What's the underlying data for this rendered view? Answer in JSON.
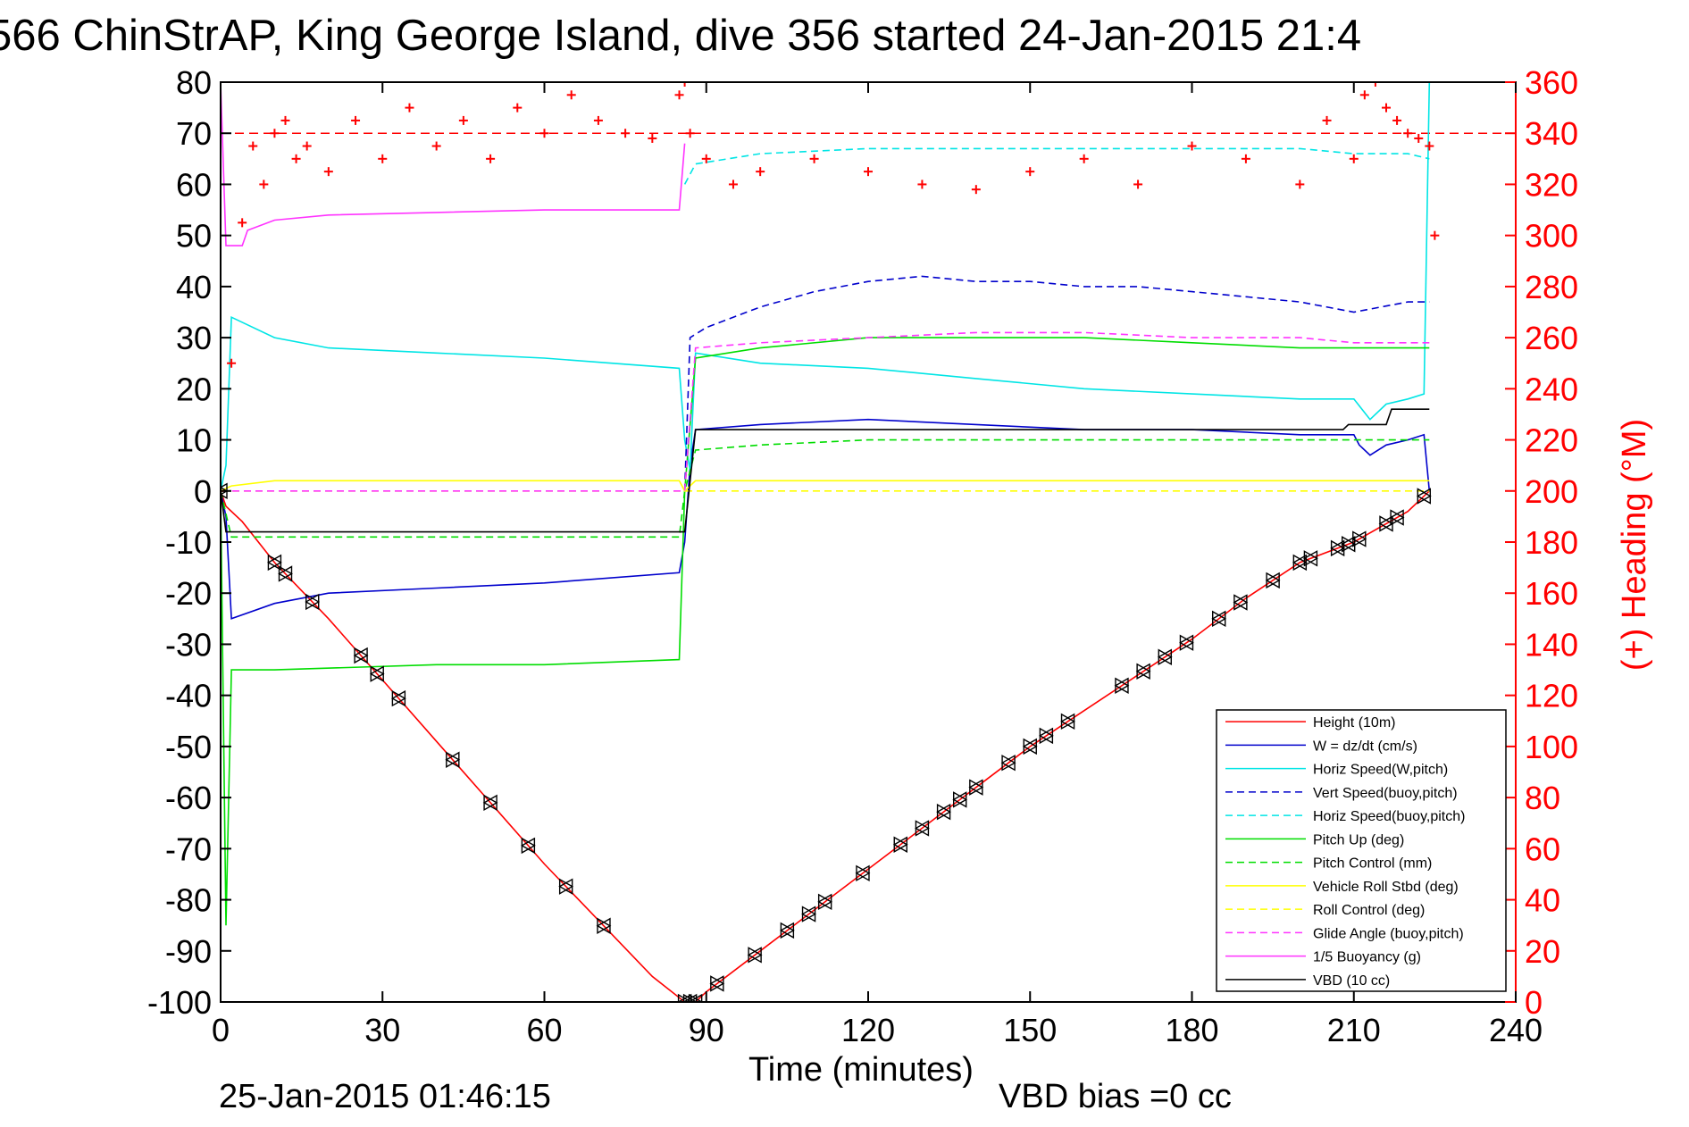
{
  "chart_data": {
    "type": "line",
    "title": "566 ChinStrAP, King George Island, dive 356 started 24-Jan-2015 21:4",
    "xlabel": "Time (minutes)",
    "ylabel_right": "(+) Heading (°M)",
    "footer_left": "25-Jan-2015 01:46:15",
    "footer_right": "VBD bias =0 cc",
    "xlim": [
      0,
      240
    ],
    "ylim_left": [
      -100,
      80
    ],
    "ylim_right": [
      0,
      360
    ],
    "x_ticks": [
      "0",
      "30",
      "60",
      "90",
      "120",
      "150",
      "180",
      "210",
      "240"
    ],
    "y_ticks_left": [
      "80",
      "70",
      "60",
      "50",
      "40",
      "30",
      "20",
      "10",
      "0",
      "-10",
      "-20",
      "-30",
      "-40",
      "-50",
      "-60",
      "-70",
      "-80",
      "-90",
      "-100"
    ],
    "y_ticks_right": [
      "360",
      "340",
      "320",
      "300",
      "280",
      "260",
      "240",
      "220",
      "200",
      "180",
      "160",
      "140",
      "120",
      "100",
      "80",
      "60",
      "40",
      "20",
      "0"
    ],
    "grid": false,
    "legend_position": "bottom-right",
    "colors": {
      "red": "#ff0000",
      "blue": "#0000cc",
      "cyan": "#00e5e5",
      "green": "#00dd00",
      "yellow": "#ffff00",
      "magenta": "#ff33ff",
      "black": "#000000"
    },
    "legend": [
      {
        "label": "Height (10m)",
        "color": "#ff0000",
        "dash": false
      },
      {
        "label": "W = dz/dt (cm/s)",
        "color": "#0000cc",
        "dash": false
      },
      {
        "label": "Horiz Speed(W,pitch)",
        "color": "#00e5e5",
        "dash": false
      },
      {
        "label": "Vert Speed(buoy,pitch)",
        "color": "#0000cc",
        "dash": true
      },
      {
        "label": "Horiz Speed(buoy,pitch)",
        "color": "#00e5e5",
        "dash": true
      },
      {
        "label": "Pitch Up (deg)",
        "color": "#00dd00",
        "dash": false
      },
      {
        "label": "Pitch Control (mm)",
        "color": "#00dd00",
        "dash": true
      },
      {
        "label": "Vehicle Roll Stbd (deg)",
        "color": "#ffff00",
        "dash": false
      },
      {
        "label": "Roll Control (deg)",
        "color": "#ffff00",
        "dash": true
      },
      {
        "label": "Glide Angle (buoy,pitch)",
        "color": "#ff33ff",
        "dash": true
      },
      {
        "label": "1/5 Buoyancy (g)",
        "color": "#ff33ff",
        "dash": false
      },
      {
        "label": "VBD (10 cc)",
        "color": "#000000",
        "dash": false
      }
    ],
    "series": [
      {
        "name": "Height (10m)",
        "axis": "left",
        "x": [
          0,
          1,
          4,
          10,
          20,
          30,
          40,
          50,
          60,
          70,
          80,
          86,
          88,
          90,
          100,
          110,
          120,
          130,
          140,
          150,
          160,
          170,
          180,
          190,
          200,
          210,
          220,
          224
        ],
        "y": [
          0,
          -3,
          -6,
          -14,
          -25,
          -37,
          -49,
          -61,
          -73,
          -84,
          -95,
          -100,
          -100,
          -98,
          -90,
          -82,
          -74,
          -66,
          -58,
          -50,
          -43,
          -36,
          -29,
          -21,
          -14,
          -10,
          -4,
          0
        ]
      },
      {
        "name": "W = dz/dt (cm/s)",
        "axis": "left",
        "x": [
          0,
          1,
          2,
          10,
          20,
          40,
          60,
          85,
          86,
          87,
          88,
          100,
          120,
          140,
          160,
          180,
          200,
          210,
          211,
          213,
          216,
          220,
          223,
          224
        ],
        "y": [
          0,
          -5,
          -25,
          -22,
          -20,
          -19,
          -18,
          -16,
          -10,
          5,
          12,
          13,
          14,
          13,
          12,
          12,
          11,
          11,
          9,
          7,
          9,
          10,
          11,
          0
        ]
      },
      {
        "name": "Horiz Speed(W,pitch)",
        "axis": "left",
        "x": [
          0,
          1,
          2,
          10,
          20,
          40,
          60,
          85,
          86,
          87,
          88,
          100,
          120,
          140,
          160,
          180,
          200,
          210,
          213,
          216,
          220,
          223,
          224
        ],
        "y": [
          0,
          5,
          34,
          30,
          28,
          27,
          26,
          24,
          10,
          4,
          27,
          25,
          24,
          22,
          20,
          19,
          18,
          18,
          14,
          17,
          18,
          19,
          80
        ]
      },
      {
        "name": "Vert Speed(buoy,pitch)",
        "axis": "left",
        "x": [
          86,
          87,
          90,
          100,
          110,
          120,
          130,
          140,
          150,
          160,
          170,
          180,
          190,
          200,
          210,
          220,
          224
        ],
        "y": [
          0,
          30,
          32,
          36,
          39,
          41,
          42,
          41,
          41,
          40,
          40,
          39,
          38,
          37,
          35,
          37,
          37
        ]
      },
      {
        "name": "Horiz Speed(buoy,pitch)",
        "axis": "left",
        "x": [
          86,
          88,
          100,
          120,
          140,
          160,
          180,
          200,
          210,
          220,
          224
        ],
        "y": [
          60,
          64,
          66,
          67,
          67,
          67,
          67,
          67,
          66,
          66,
          65
        ]
      },
      {
        "name": "Pitch Up (deg)",
        "axis": "left",
        "x": [
          0,
          1,
          2,
          10,
          40,
          60,
          85,
          86,
          88,
          100,
          120,
          140,
          160,
          180,
          200,
          210,
          220,
          224
        ],
        "y": [
          0,
          -85,
          -35,
          -35,
          -34,
          -34,
          -33,
          0,
          26,
          28,
          30,
          30,
          30,
          29,
          28,
          28,
          28,
          28
        ]
      },
      {
        "name": "Pitch Control (mm)",
        "axis": "left",
        "x": [
          0,
          2,
          20,
          40,
          60,
          85,
          86,
          88,
          100,
          120,
          140,
          160,
          180,
          200,
          224
        ],
        "y": [
          0,
          -9,
          -9,
          -9,
          -9,
          -9,
          0,
          8,
          9,
          10,
          10,
          10,
          10,
          10,
          10
        ]
      },
      {
        "name": "Vehicle Roll Stbd (deg)",
        "axis": "left",
        "x": [
          0,
          2,
          10,
          40,
          60,
          85,
          86,
          88,
          100,
          120,
          140,
          160,
          180,
          200,
          210,
          224
        ],
        "y": [
          0,
          1,
          2,
          2,
          2,
          2,
          0,
          2,
          2,
          2,
          2,
          2,
          2,
          2,
          2,
          2
        ]
      },
      {
        "name": "Roll Control (deg)",
        "axis": "left",
        "x": [
          0,
          2,
          86,
          88,
          200,
          224
        ],
        "y": [
          0,
          0,
          0,
          0,
          0,
          0
        ]
      },
      {
        "name": "Glide Angle (buoy,pitch)",
        "axis": "left",
        "x": [
          0,
          2,
          86,
          88,
          100,
          120,
          140,
          160,
          180,
          200,
          210,
          220,
          224
        ],
        "y": [
          0,
          0,
          0,
          28,
          29,
          30,
          31,
          31,
          30,
          30,
          29,
          29,
          29
        ]
      },
      {
        "name": "1/5 Buoyancy (g)",
        "axis": "left",
        "x": [
          0,
          1,
          4,
          5,
          10,
          20,
          40,
          60,
          85,
          86
        ],
        "y": [
          80,
          48,
          48,
          51,
          53,
          54,
          54.5,
          55,
          55,
          68
        ]
      },
      {
        "name": "VBD (10 cc)",
        "axis": "left",
        "x": [
          0,
          1,
          2,
          85,
          86,
          88,
          100,
          120,
          140,
          160,
          180,
          200,
          208,
          209,
          216,
          217,
          224
        ],
        "y": [
          0,
          -8,
          -8,
          -8,
          -8,
          12,
          12,
          12,
          12,
          12,
          12,
          12,
          12,
          13,
          13,
          16,
          16
        ]
      },
      {
        "name": "Heading",
        "axis": "right",
        "x": [
          0,
          2,
          4,
          6,
          8,
          10,
          12,
          14,
          16,
          20,
          25,
          30,
          35,
          40,
          45,
          50,
          55,
          60,
          65,
          70,
          75,
          80,
          85,
          86,
          87,
          90,
          95,
          100,
          110,
          120,
          130,
          140,
          150,
          160,
          170,
          180,
          190,
          200,
          205,
          210,
          212,
          214,
          216,
          218,
          220,
          222,
          224,
          225
        ],
        "y": [
          200,
          250,
          305,
          335,
          320,
          340,
          345,
          330,
          335,
          325,
          345,
          330,
          350,
          335,
          345,
          330,
          350,
          340,
          355,
          345,
          340,
          338,
          355,
          360,
          340,
          330,
          320,
          325,
          330,
          325,
          320,
          318,
          325,
          330,
          320,
          335,
          330,
          320,
          345,
          330,
          355,
          360,
          350,
          345,
          340,
          338,
          335,
          300
        ]
      }
    ],
    "heading_reference": 340,
    "markers_x": [
      0,
      10,
      12,
      17,
      26,
      29,
      33,
      43,
      50,
      57,
      64,
      71,
      86,
      87,
      88,
      92,
      99,
      105,
      109,
      112,
      119,
      126,
      130,
      134,
      137,
      140,
      146,
      150,
      153,
      157,
      167,
      171,
      175,
      179,
      185,
      189,
      195,
      200,
      202,
      207,
      209,
      211,
      216,
      218,
      223
    ]
  }
}
